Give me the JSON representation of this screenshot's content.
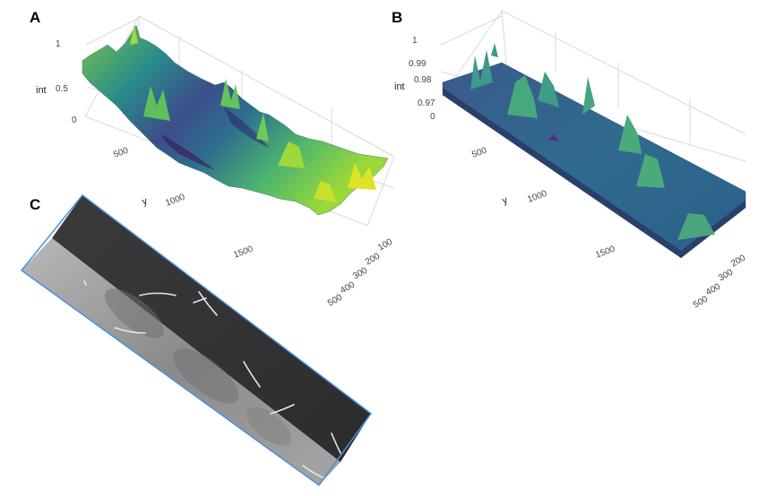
{
  "panels": {
    "A": "A",
    "B": "B",
    "C": "C"
  },
  "colors": {
    "viridis_low": "#440154",
    "viridis_mid": "#21918c",
    "viridis_high": "#fde725",
    "frame_blue": "#4a90d9"
  },
  "chart_data": [
    {
      "panel": "A",
      "type": "surface",
      "colorscale": "viridis",
      "zlabel": "int",
      "ylabel": "y",
      "xlabel": "",
      "z_ticks": [
        "0",
        "0.5",
        "1"
      ],
      "y_ticks": [
        "500",
        "1000",
        "1500"
      ],
      "x_ticks": [
        "100",
        "200",
        "300",
        "400",
        "500"
      ],
      "zlim": [
        0,
        1
      ],
      "ylim": [
        0,
        1900
      ],
      "xlim": [
        0,
        550
      ],
      "grid": true
    },
    {
      "panel": "B",
      "type": "surface",
      "colorscale": "viridis",
      "zlabel": "int",
      "ylabel": "y",
      "xlabel": "",
      "z_ticks": [
        "0",
        "0.97",
        "0.98",
        "0.99",
        "1"
      ],
      "y_ticks": [
        "500",
        "1000",
        "1500"
      ],
      "x_ticks": [
        "200",
        "300",
        "400",
        "500"
      ],
      "zlim": [
        0,
        1
      ],
      "ylim": [
        0,
        1900
      ],
      "xlim": [
        0,
        550
      ],
      "grid": true
    },
    {
      "panel": "C",
      "type": "image",
      "description_visible": "rotated grayscale micrograph with fibers"
    }
  ]
}
